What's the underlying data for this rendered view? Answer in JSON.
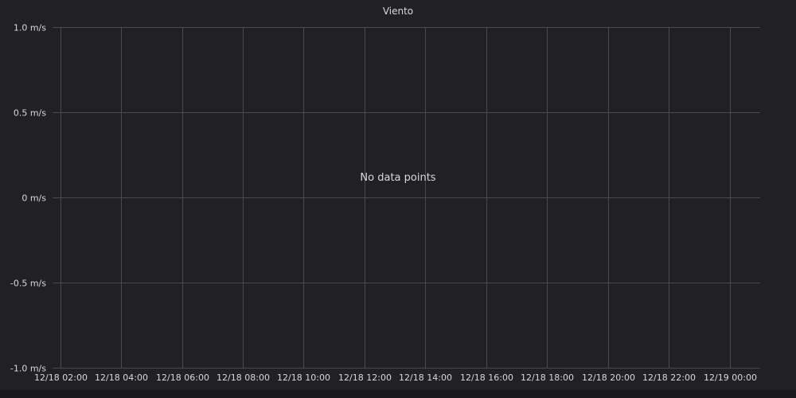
{
  "chart_data": {
    "type": "line",
    "title": "Viento",
    "xlabel": "",
    "ylabel": "",
    "unit": "m/s",
    "ylim": [
      -1.0,
      1.0
    ],
    "y_ticks": [
      1.0,
      0.5,
      0,
      -0.5,
      -1.0
    ],
    "y_tick_labels": [
      "1.0 m/s",
      "0.5 m/s",
      "0 m/s",
      "-0.5 m/s",
      "-1.0 m/s"
    ],
    "x_tick_labels": [
      "12/18 02:00",
      "12/18 04:00",
      "12/18 06:00",
      "12/18 08:00",
      "12/18 10:00",
      "12/18 12:00",
      "12/18 14:00",
      "12/18 16:00",
      "12/18 18:00",
      "12/18 20:00",
      "12/18 22:00",
      "12/19 00:00"
    ],
    "x_tick_hours": [
      2,
      4,
      6,
      8,
      10,
      12,
      14,
      16,
      18,
      20,
      22,
      24
    ],
    "x_range_hours": [
      1.75,
      25.0
    ],
    "series": [],
    "grid": true,
    "message": "No data points"
  },
  "colors": {
    "background": "#212124",
    "grid": "#4a4a4f",
    "text": "#d8d9da"
  }
}
